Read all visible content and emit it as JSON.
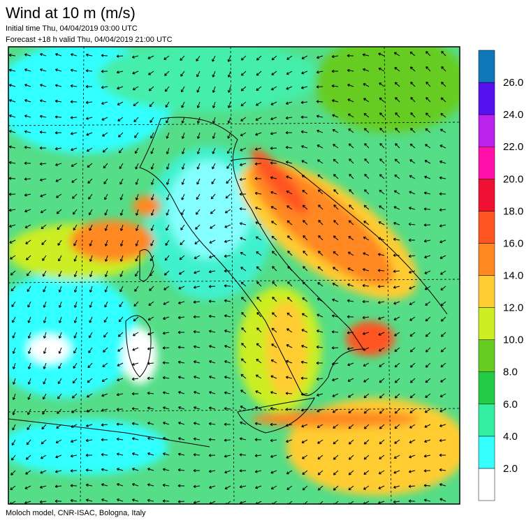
{
  "header": {
    "title": "Wind at 10 m (m/s)",
    "initial_time": "Initial time  Thu, 04/04/2019 03:00 UTC",
    "forecast": "Forecast +18 h valid  Thu, 04/04/2019 21:00 UTC"
  },
  "footer": "Moloch model, CNR-ISAC, Bologna, Italy",
  "colorbar": {
    "colors": [
      "#ffffff",
      "#33ffff",
      "#33eea0",
      "#22cc44",
      "#66cc22",
      "#ccee22",
      "#ffcc33",
      "#ff8822",
      "#ff5522",
      "#ee1133",
      "#ff11aa",
      "#bb22ee",
      "#5511ee",
      "#1177bb"
    ],
    "labels": [
      "2.0",
      "4.0",
      "6.0",
      "8.0",
      "10.0",
      "12.0",
      "14.0",
      "16.0",
      "18.0",
      "20.0",
      "22.0",
      "24.0",
      "26.0"
    ]
  }
}
